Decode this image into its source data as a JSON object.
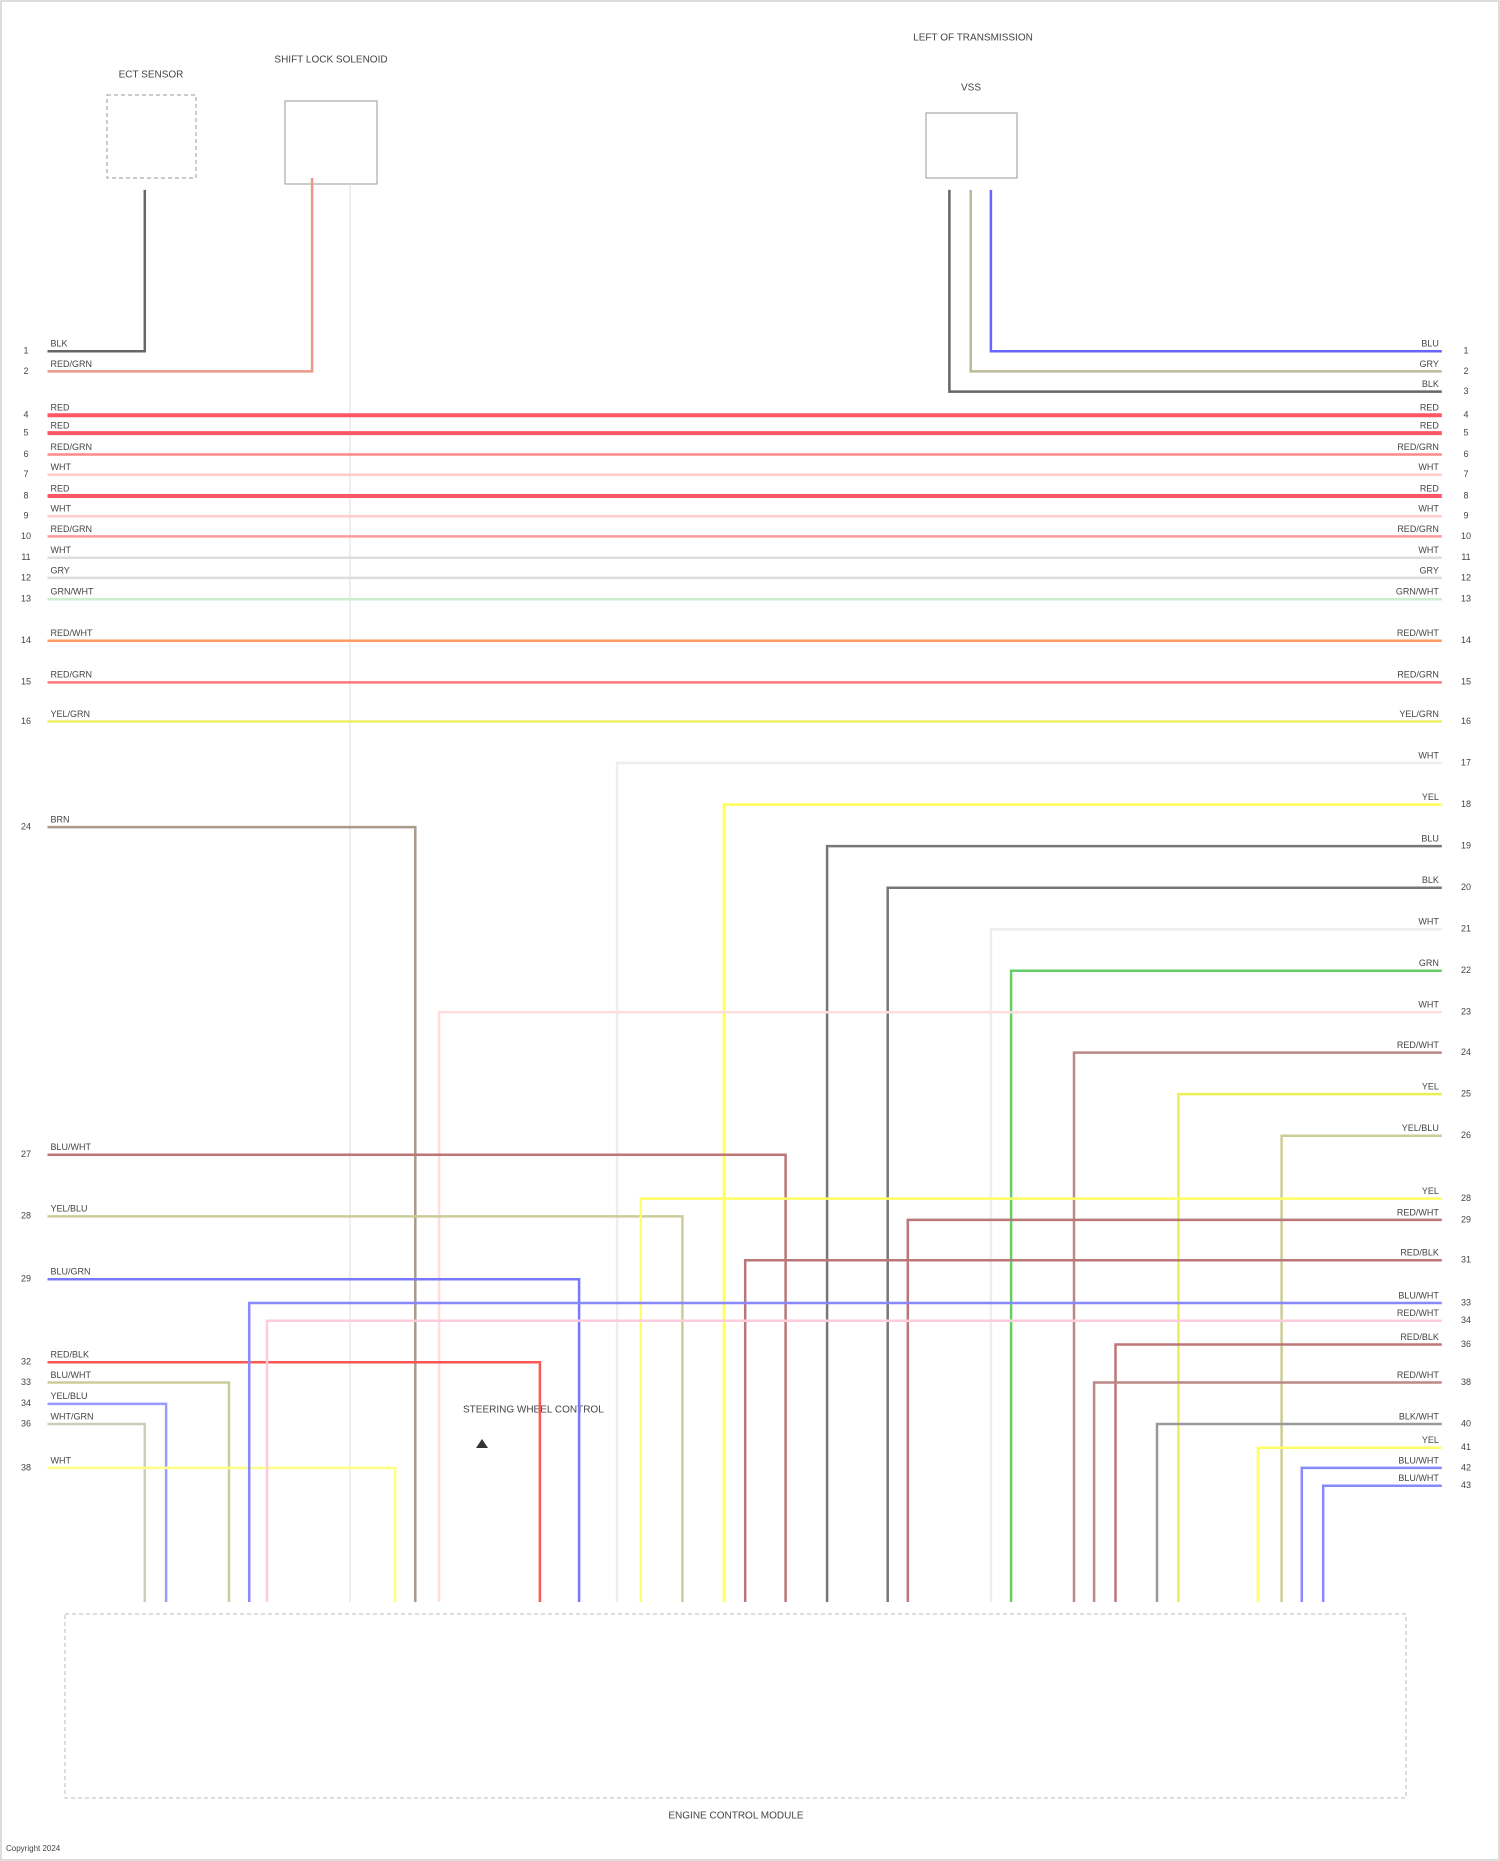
{
  "components": [
    {
      "label": "ECT SENSOR"
    },
    {
      "label": "SHIFT LOCK SOLENOID"
    },
    {
      "label": "VSS"
    },
    {
      "label": "ENGINE CONTROL MODULE"
    }
  ],
  "header": {
    "location": "LEFT OF TRANSMISSION"
  },
  "annotation": "STEERING WHEEL CONTROL",
  "footer": "Copyright 2024",
  "wires": [
    {
      "label": "BLK",
      "color": "#666666",
      "left_pin": "1"
    },
    {
      "label": "RED/GRN",
      "color": "#ee9988",
      "left_pin": "2"
    },
    {
      "label": "BLU",
      "color": "#6666ff",
      "right_pin": "1"
    },
    {
      "label": "GRY",
      "color": "#bbbb99",
      "right_pin": "2"
    },
    {
      "label": "BLK",
      "color": "#666666",
      "right_pin": "3"
    },
    {
      "label": "RED",
      "color": "#ff5566",
      "left_pin": "4",
      "right_pin": "4"
    },
    {
      "label": "RED",
      "color": "#ff5566",
      "left_pin": "5",
      "right_pin": "5"
    },
    {
      "label": "RED/GRN",
      "color": "#ff8888",
      "left_pin": "6",
      "right_pin": "6"
    },
    {
      "label": "WHT",
      "color": "#ffcccc",
      "left_pin": "7",
      "right_pin": "7"
    },
    {
      "label": "RED",
      "color": "#ff5566",
      "left_pin": "8",
      "right_pin": "8"
    },
    {
      "label": "WHT",
      "color": "#ffcccc",
      "left_pin": "9",
      "right_pin": "9"
    },
    {
      "label": "RED/GRN",
      "color": "#ff9999",
      "left_pin": "10",
      "right_pin": "10"
    },
    {
      "label": "WHT",
      "color": "#dddddd",
      "left_pin": "11",
      "right_pin": "11"
    },
    {
      "label": "GRY",
      "color": "#dddddd",
      "left_pin": "12",
      "right_pin": "12"
    },
    {
      "label": "GRN/WHT",
      "color": "#cceecc",
      "left_pin": "13",
      "right_pin": "13"
    },
    {
      "label": "RED/WHT",
      "color": "#ff9966",
      "left_pin": "14",
      "right_pin": "14"
    },
    {
      "label": "RED/GRN",
      "color": "#ff7777",
      "left_pin": "15",
      "right_pin": "15"
    },
    {
      "label": "YEL/GRN",
      "color": "#eeee66",
      "left_pin": "16",
      "right_pin": "16"
    },
    {
      "label": "WHT",
      "color": "#eeeeee",
      "right_pin": "17"
    },
    {
      "label": "YEL",
      "color": "#ffff55",
      "right_pin": "18"
    },
    {
      "label": "BLU",
      "color": "#777777",
      "right_pin": "19"
    },
    {
      "label": "BLK",
      "color": "#777777",
      "right_pin": "20"
    },
    {
      "label": "WHT",
      "color": "#eeeeee",
      "right_pin": "21"
    },
    {
      "label": "GRN",
      "color": "#66cc66",
      "right_pin": "22"
    },
    {
      "label": "WHT",
      "color": "#ffdddd",
      "right_pin": "23"
    },
    {
      "label": "RED/WHT",
      "color": "#bb8888",
      "right_pin": "24"
    },
    {
      "label": "YEL",
      "color": "#eeee55",
      "right_pin": "25"
    },
    {
      "label": "YEL/BLU",
      "color": "#cccc99",
      "right_pin": "26"
    },
    {
      "label": "BRN",
      "color": "#aa9988",
      "left_pin": "24"
    },
    {
      "label": "BLU/WHT",
      "color": "#bb7777",
      "left_pin": "27"
    },
    {
      "label": "YEL/BLU",
      "color": "#cccc99",
      "left_pin": "28"
    },
    {
      "label": "BLU/GRN",
      "color": "#7777ff",
      "left_pin": "29"
    },
    {
      "label": "RED/BLK",
      "color": "#ff5555",
      "left_pin": "32"
    },
    {
      "label": "BLU/WHT",
      "color": "#cccc99",
      "left_pin": "33"
    },
    {
      "label": "YEL/BLU",
      "color": "#9999ff",
      "left_pin": "34"
    },
    {
      "label": "WHT/GRN",
      "color": "#ccccbb",
      "left_pin": "36"
    },
    {
      "label": "WHT",
      "color": "#ffff88",
      "left_pin": "38"
    },
    {
      "label": "YEL",
      "color": "#ffff66",
      "right_pin": "28"
    },
    {
      "label": "RED/WHT",
      "color": "#bb7777",
      "right_pin": "29"
    },
    {
      "label": "RED/BLK",
      "color": "#bb7777",
      "right_pin": "31"
    },
    {
      "label": "BLU/WHT",
      "color": "#8888ff",
      "right_pin": "33"
    },
    {
      "label": "RED/WHT",
      "color": "#ffccdd",
      "right_pin": "34"
    },
    {
      "label": "RED/BLK",
      "color": "#bb7777",
      "right_pin": "36"
    },
    {
      "label": "RED/WHT",
      "color": "#bb8888",
      "right_pin": "38"
    },
    {
      "label": "BLK/WHT",
      "color": "#999999",
      "right_pin": "40"
    },
    {
      "label": "YEL",
      "color": "#ffff66",
      "right_pin": "41"
    },
    {
      "label": "BLU/WHT",
      "color": "#8888ff",
      "right_pin": "42"
    },
    {
      "label": "BLU/WHT",
      "color": "#8888ff",
      "right_pin": "43"
    }
  ]
}
